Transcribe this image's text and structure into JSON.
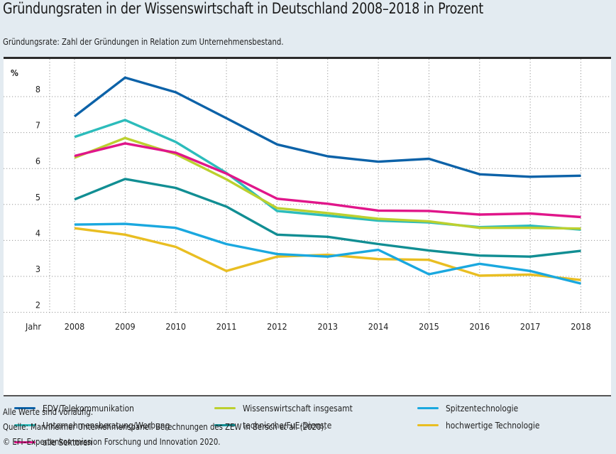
{
  "header": {
    "title": "Gründungsraten in der Wissenswirtschaft in Deutschland 2008–2018 in Prozent",
    "subtitle": "Gründungsrate: Zahl der Gründungen in Relation zum Unternehmensbestand."
  },
  "footer": {
    "note": "Alle Werte sind vorläufig.",
    "source": "Quelle: Mannheimer Unternehmenspanel. Berechnungen des ZEW in Bersch et al. (2020).",
    "copyright": "© EFI–Expertenkommission Forschung und Innovation 2020."
  },
  "chart_data": {
    "type": "line",
    "title": "Gründungsraten in der Wissenswirtschaft in Deutschland 2008–2018 in Prozent",
    "subtitle": "Gründungsrate: Zahl der Gründungen in Relation zum Unternehmensbestand.",
    "xlabel": "Jahr",
    "ylabel": "%",
    "x": [
      "2008",
      "2009",
      "2010",
      "2011",
      "2012",
      "2013",
      "2014",
      "2015",
      "2016",
      "2017",
      "2018"
    ],
    "ylim": [
      2,
      8.9
    ],
    "yticks": [
      2,
      3,
      4,
      5,
      6,
      7,
      8
    ],
    "grid": true,
    "grid_style": "dotted",
    "legend_position": "bottom",
    "series": [
      {
        "name": "EDV/Telekommunikation",
        "color": "#0c62a8",
        "values": [
          7.45,
          8.53,
          8.12,
          7.4,
          6.67,
          6.34,
          6.19,
          6.27,
          5.84,
          5.77,
          5.8
        ]
      },
      {
        "name": "Wissenswirtschaft insgesamt",
        "color": "#bcd02f",
        "values": [
          6.3,
          6.85,
          6.4,
          5.7,
          4.9,
          4.76,
          4.6,
          4.53,
          4.35,
          4.35,
          4.33
        ]
      },
      {
        "name": "Spitzentechnologie",
        "color": "#1aa8df",
        "values": [
          4.44,
          4.46,
          4.35,
          3.9,
          3.62,
          3.55,
          3.74,
          3.06,
          3.35,
          3.15,
          2.8
        ]
      },
      {
        "name": "Unternehmensberatung/Werbung",
        "color": "#2cbcbb",
        "values": [
          6.88,
          7.35,
          6.74,
          5.88,
          4.82,
          4.69,
          4.55,
          4.5,
          4.37,
          4.41,
          4.3
        ]
      },
      {
        "name": "technische/FuE-Dienste",
        "color": "#118e93",
        "values": [
          5.14,
          5.71,
          5.46,
          4.94,
          4.16,
          4.1,
          3.9,
          3.72,
          3.58,
          3.55,
          3.71
        ]
      },
      {
        "name": "hochwertige Technologie",
        "color": "#e9be22",
        "values": [
          4.34,
          4.16,
          3.82,
          3.15,
          3.55,
          3.6,
          3.48,
          3.46,
          3.02,
          3.05,
          2.9
        ]
      },
      {
        "name": "alle Sektoren",
        "color": "#e0168a",
        "values": [
          6.35,
          6.7,
          6.44,
          5.86,
          5.16,
          5.02,
          4.83,
          4.82,
          4.72,
          4.75,
          4.65
        ]
      }
    ]
  }
}
